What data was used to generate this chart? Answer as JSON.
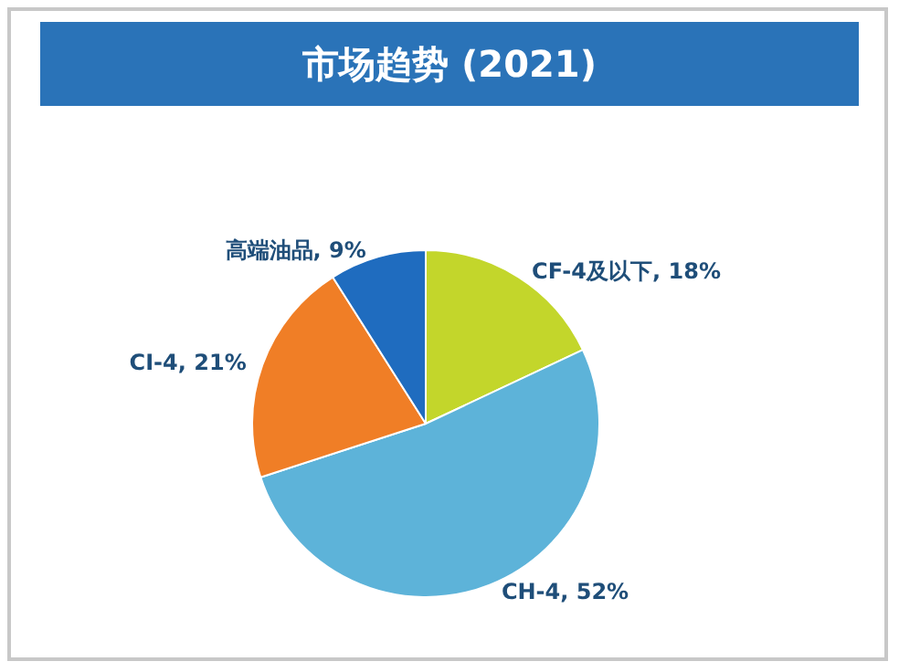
{
  "chart_data": {
    "type": "pie",
    "title": "市场趋势 (2021)",
    "categories": [
      "CF-4及以下",
      "CH-4",
      "CI-4",
      "高端油品"
    ],
    "values": [
      18,
      52,
      21,
      9
    ],
    "value_labels": [
      "18%",
      "52%",
      "21%",
      "9%"
    ],
    "colors": [
      "#c3d62b",
      "#5db3d9",
      "#f07e26",
      "#1f6cbf"
    ],
    "legend": false
  }
}
